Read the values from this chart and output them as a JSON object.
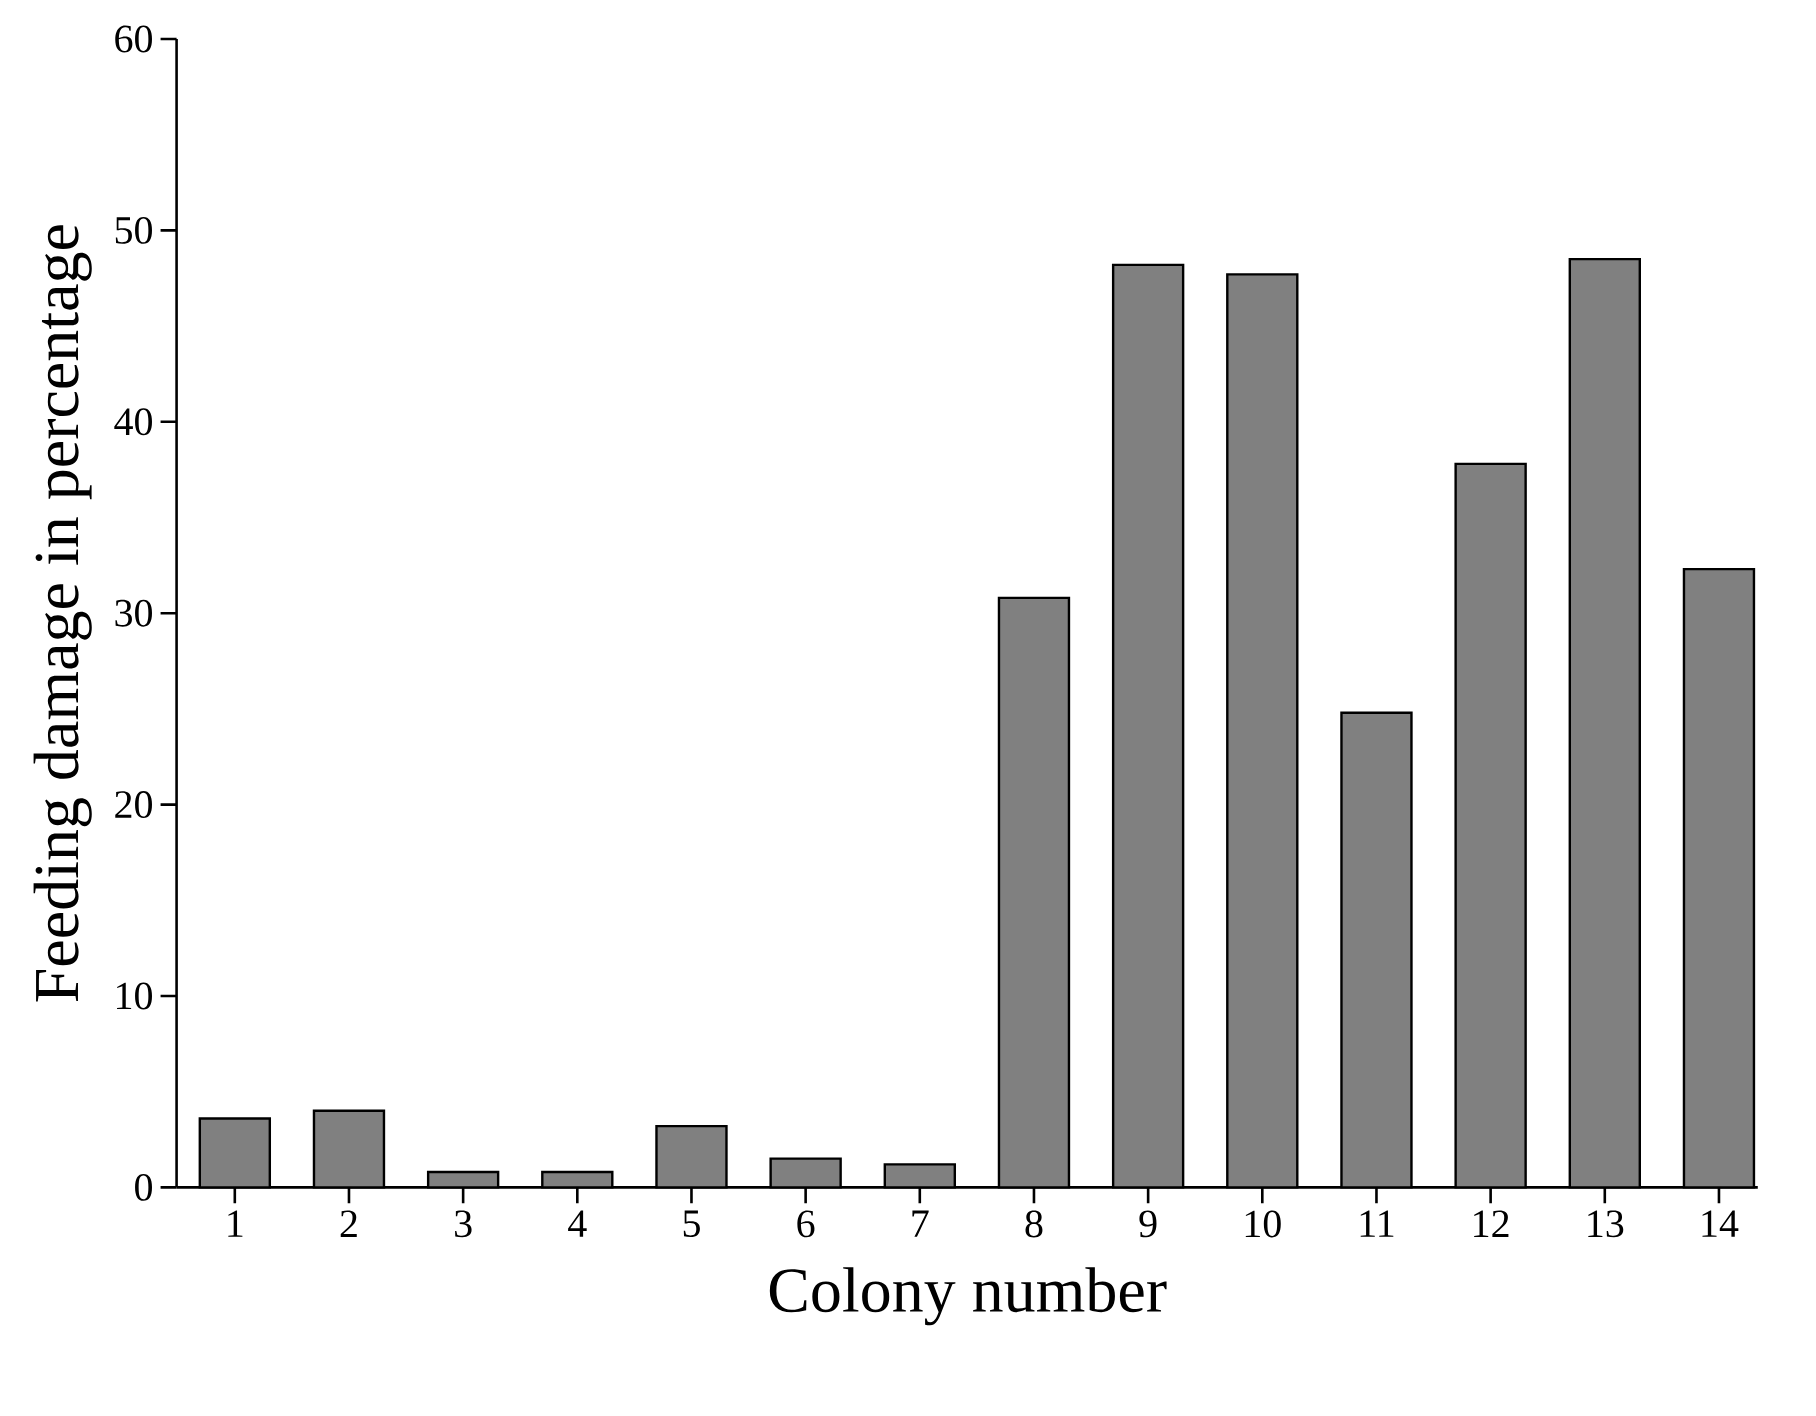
{
  "chart_data": {
    "type": "bar",
    "xlabel": "Colony number",
    "ylabel": "Feeding damage in percentage",
    "categories": [
      "1",
      "2",
      "3",
      "4",
      "5",
      "6",
      "7",
      "8",
      "9",
      "10",
      "11",
      "12",
      "13",
      "14"
    ],
    "values": [
      3.6,
      4.0,
      0.8,
      0.8,
      3.2,
      1.5,
      1.2,
      30.8,
      48.2,
      47.7,
      24.8,
      37.8,
      48.5,
      32.3
    ],
    "color": "#808080",
    "ylim": [
      0,
      60
    ],
    "yticks": [
      0,
      10,
      20,
      30,
      40,
      50,
      60
    ]
  }
}
